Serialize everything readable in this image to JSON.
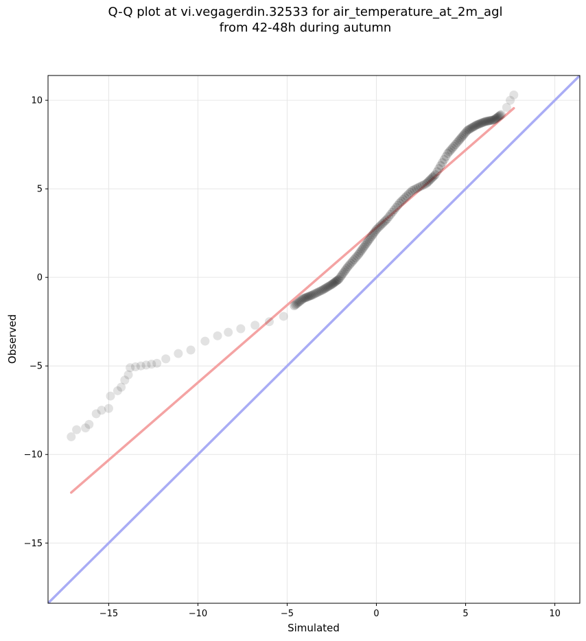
{
  "chart_data": {
    "type": "scatter",
    "title_lines": [
      "Q-Q plot at vi.vegagerdin.32533 for air_temperature_at_2m_agl",
      "from 42-48h during autumn"
    ],
    "xlabel": "Simulated",
    "ylabel": "Observed",
    "xlim": [
      -18.4,
      11.4
    ],
    "ylim": [
      -18.4,
      11.4
    ],
    "xticks": [
      -15,
      -10,
      -5,
      0,
      5,
      10
    ],
    "yticks": [
      -15,
      -10,
      -5,
      0,
      5,
      10
    ],
    "tick_labels": [
      "−15",
      "−10",
      "−5",
      "0",
      "5",
      "10"
    ],
    "grid": true,
    "colors": {
      "points": "#222222",
      "fit_line": "#f4a3a3",
      "identity_line": "#a9acf5",
      "grid": "#e6e6e6"
    },
    "fit_line": {
      "x": [
        -17.1,
        7.7
      ],
      "y": [
        -12.15,
        9.55
      ]
    },
    "identity_line": {
      "x": [
        -18.4,
        11.4
      ],
      "y": [
        -18.4,
        11.4
      ]
    },
    "qq_points": {
      "x": [
        -17.1,
        -16.8,
        -16.3,
        -16.1,
        -15.7,
        -15.4,
        -15.0,
        -14.9,
        -14.5,
        -14.3,
        -14.1,
        -13.9,
        -13.8,
        -13.5,
        -13.2,
        -12.9,
        -12.6,
        -12.3,
        -11.8,
        -11.1,
        -10.4,
        -9.6,
        -8.9,
        -8.3,
        -7.6,
        -6.8,
        -6.0,
        -5.2,
        -4.6,
        -4.1,
        -3.6,
        -3.0,
        -2.5,
        -2.1,
        -1.6,
        -1.0,
        -0.5,
        0.0,
        0.6,
        1.3,
        2.0,
        2.8,
        3.3,
        4.0,
        4.6,
        5.1,
        5.6,
        6.1,
        6.6,
        7.0,
        7.3,
        7.5,
        7.7
      ],
      "y": [
        -9.0,
        -8.6,
        -8.5,
        -8.3,
        -7.7,
        -7.5,
        -7.4,
        -6.7,
        -6.4,
        -6.2,
        -5.8,
        -5.5,
        -5.1,
        -5.05,
        -5.0,
        -4.95,
        -4.9,
        -4.85,
        -4.6,
        -4.3,
        -4.1,
        -3.6,
        -3.3,
        -3.1,
        -2.9,
        -2.7,
        -2.5,
        -2.2,
        -1.6,
        -1.2,
        -1.0,
        -0.7,
        -0.4,
        -0.1,
        0.6,
        1.3,
        2.0,
        2.7,
        3.3,
        4.2,
        4.9,
        5.3,
        5.8,
        7.0,
        7.7,
        8.3,
        8.6,
        8.8,
        8.9,
        9.2,
        9.6,
        10.0,
        10.3
      ]
    }
  }
}
